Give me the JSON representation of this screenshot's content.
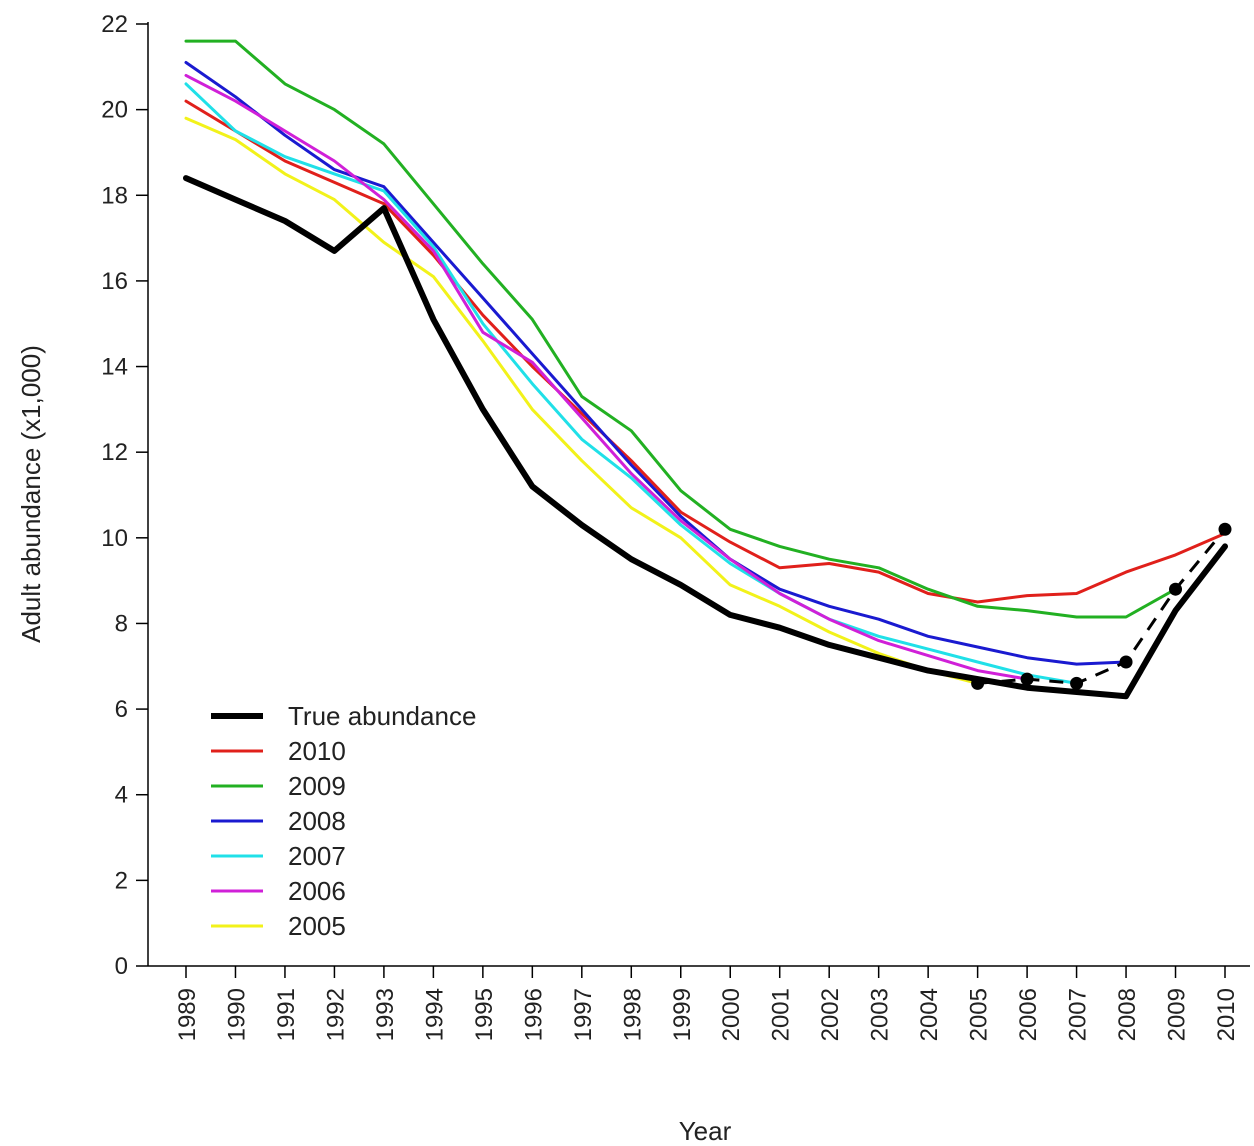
{
  "chart_data": {
    "type": "line",
    "title": "",
    "xlabel": "Year",
    "ylabel": "Adult abundance (x1,000)",
    "x": [
      1989,
      1990,
      1991,
      1992,
      1993,
      1994,
      1995,
      1996,
      1997,
      1998,
      1999,
      2000,
      2001,
      2002,
      2003,
      2004,
      2005,
      2006,
      2007,
      2008,
      2009,
      2010
    ],
    "x_tick_labels": [
      "1989",
      "1990",
      "1991",
      "1992",
      "1993",
      "1994",
      "1995",
      "1996",
      "1997",
      "1998",
      "1999",
      "2000",
      "2001",
      "2002",
      "2003",
      "2004",
      "2005",
      "2006",
      "2007",
      "2008",
      "2009",
      "2010"
    ],
    "ylim": [
      0,
      22
    ],
    "y_ticks": [
      0,
      2,
      4,
      6,
      8,
      10,
      12,
      14,
      16,
      18,
      20,
      22
    ],
    "y_tick_labels": [
      "0",
      "2",
      "4",
      "6",
      "8",
      "10",
      "12",
      "14",
      "16",
      "18",
      "20",
      "22"
    ],
    "grid": false,
    "legend_position": "bottom-left",
    "series": [
      {
        "name": "True abundance",
        "color": "#000000",
        "width": "thick",
        "x": [
          1989,
          1990,
          1991,
          1992,
          1993,
          1994,
          1995,
          1996,
          1997,
          1998,
          1999,
          2000,
          2001,
          2002,
          2003,
          2004,
          2005,
          2006,
          2007,
          2008,
          2009,
          2010
        ],
        "y": [
          18.4,
          17.9,
          17.4,
          16.7,
          17.7,
          15.1,
          13.0,
          11.2,
          10.3,
          9.5,
          8.9,
          8.2,
          7.9,
          7.5,
          7.2,
          6.9,
          6.7,
          6.5,
          6.4,
          6.3,
          8.3,
          9.8
        ]
      },
      {
        "name": "2010",
        "color": "#e0201b",
        "width": "normal",
        "x": [
          1989,
          1990,
          1991,
          1992,
          1993,
          1994,
          1995,
          1996,
          1997,
          1998,
          1999,
          2000,
          2001,
          2002,
          2003,
          2004,
          2005,
          2006,
          2007,
          2008,
          2009,
          2010
        ],
        "y": [
          20.2,
          19.5,
          18.8,
          18.3,
          17.8,
          16.6,
          15.2,
          14.0,
          12.9,
          11.8,
          10.6,
          9.9,
          9.3,
          9.4,
          9.2,
          8.7,
          8.5,
          8.65,
          8.7,
          9.2,
          9.6,
          10.1
        ]
      },
      {
        "name": "2009",
        "color": "#22b022",
        "width": "normal",
        "x": [
          1989,
          1990,
          1991,
          1992,
          1993,
          1994,
          1995,
          1996,
          1997,
          1998,
          1999,
          2000,
          2001,
          2002,
          2003,
          2004,
          2005,
          2006,
          2007,
          2008,
          2009
        ],
        "y": [
          21.6,
          21.6,
          20.6,
          20.0,
          19.2,
          17.8,
          16.4,
          15.1,
          13.3,
          12.5,
          11.1,
          10.2,
          9.8,
          9.5,
          9.3,
          8.8,
          8.4,
          8.3,
          8.15,
          8.15,
          8.8
        ]
      },
      {
        "name": "2008",
        "color": "#1a1ad0",
        "width": "normal",
        "x": [
          1989,
          1990,
          1991,
          1992,
          1993,
          1994,
          1995,
          1996,
          1997,
          1998,
          1999,
          2000,
          2001,
          2002,
          2003,
          2004,
          2005,
          2006,
          2007,
          2008
        ],
        "y": [
          21.1,
          20.3,
          19.4,
          18.6,
          18.2,
          16.9,
          15.6,
          14.3,
          13.0,
          11.7,
          10.5,
          9.5,
          8.8,
          8.4,
          8.1,
          7.7,
          7.45,
          7.2,
          7.05,
          7.1
        ]
      },
      {
        "name": "2007",
        "color": "#20e0e8",
        "width": "normal",
        "x": [
          1989,
          1990,
          1991,
          1992,
          1993,
          1994,
          1995,
          1996,
          1997,
          1998,
          1999,
          2000,
          2001,
          2002,
          2003,
          2004,
          2005,
          2006,
          2007
        ],
        "y": [
          20.6,
          19.5,
          18.9,
          18.5,
          18.1,
          16.8,
          15.0,
          13.6,
          12.3,
          11.4,
          10.3,
          9.4,
          8.7,
          8.1,
          7.7,
          7.4,
          7.1,
          6.8,
          6.6
        ]
      },
      {
        "name": "2006",
        "color": "#d020d8",
        "width": "normal",
        "x": [
          1989,
          1990,
          1991,
          1992,
          1993,
          1994,
          1995,
          1996,
          1997,
          1998,
          1999,
          2000,
          2001,
          2002,
          2003,
          2004,
          2005,
          2006
        ],
        "y": [
          20.8,
          20.2,
          19.5,
          18.8,
          17.9,
          16.7,
          14.8,
          14.1,
          12.8,
          11.5,
          10.4,
          9.5,
          8.7,
          8.1,
          7.6,
          7.25,
          6.9,
          6.7
        ]
      },
      {
        "name": "2005",
        "color": "#f2f21a",
        "width": "normal",
        "x": [
          1989,
          1990,
          1991,
          1992,
          1993,
          1994,
          1995,
          1996,
          1997,
          1998,
          1999,
          2000,
          2001,
          2002,
          2003,
          2004,
          2005
        ],
        "y": [
          19.8,
          19.3,
          18.5,
          17.9,
          16.9,
          16.1,
          14.6,
          13.0,
          11.8,
          10.7,
          10.0,
          8.9,
          8.4,
          7.8,
          7.3,
          6.9,
          6.6
        ]
      }
    ],
    "dashed_terminal": {
      "color": "#000000",
      "x": [
        2005,
        2006,
        2007,
        2008,
        2009,
        2010
      ],
      "y": [
        6.6,
        6.7,
        6.6,
        7.1,
        8.8,
        10.2
      ]
    }
  }
}
